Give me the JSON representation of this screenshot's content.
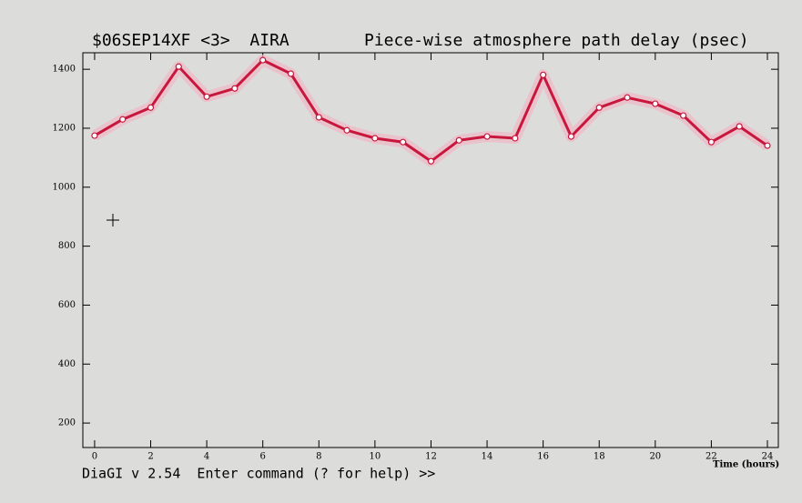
{
  "chart_data": {
    "type": "line",
    "title": "$06SEP14XF <3>  AIRA",
    "subtitle": "Piece-wise atmosphere path delay (psec)",
    "x_label": "Time (hours)",
    "prompt": "DiaGI v 2.54  Enter command (? for help) >>",
    "x": [
      0,
      1,
      2,
      3,
      4,
      5,
      6,
      7,
      8,
      9,
      10,
      11,
      12,
      13,
      14,
      15,
      16,
      17,
      18,
      19,
      20,
      21,
      22,
      23,
      24
    ],
    "series": [
      {
        "color": "#c8173c",
        "values": [
          1175,
          1230,
          1270,
          1409,
          1307,
          1335,
          1431,
          1385,
          1237,
          1193,
          1166,
          1153,
          1088,
          1159,
          1172,
          1166,
          1381,
          1172,
          1270,
          1304,
          1283,
          1243,
          1153,
          1206,
          1141
        ]
      }
    ],
    "xlim": [
      -0.42,
      24.39
    ],
    "ylim": [
      117,
      1456
    ],
    "xticks": [
      0,
      2,
      4,
      6,
      8,
      10,
      12,
      14,
      16,
      18,
      20,
      22,
      24
    ],
    "yticks": [
      200,
      400,
      600,
      800,
      1000,
      1200,
      1400
    ]
  }
}
